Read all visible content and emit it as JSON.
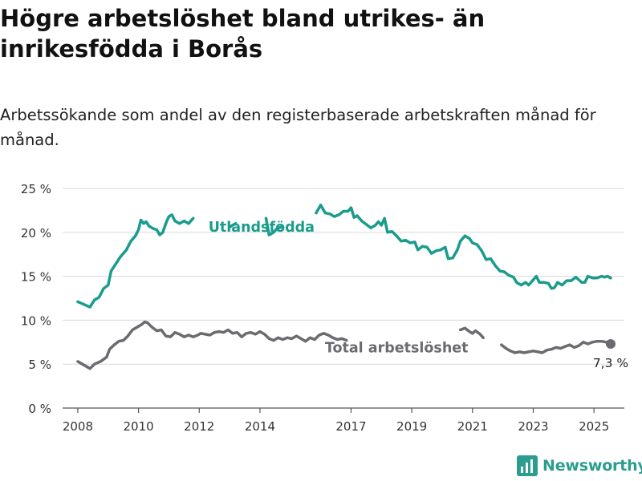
{
  "header": {
    "title": "Högre arbetslöshet bland utrikes- än inrikesfödda i Borås",
    "subtitle": "Arbetssökande som andel av den registerbaserade arbetskraften månad för månad."
  },
  "brand": {
    "name": "Newsworthy",
    "icon": "newsworthy-logo-icon",
    "color": "#2a9d8f"
  },
  "chart_data": {
    "type": "line",
    "ylim": [
      0,
      25
    ],
    "xlim": [
      2007.5,
      2026
    ],
    "yticks": [
      {
        "value": 0,
        "label": "0 %"
      },
      {
        "value": 5,
        "label": "5 %"
      },
      {
        "value": 10,
        "label": "10 %"
      },
      {
        "value": 15,
        "label": "15 %"
      },
      {
        "value": 20,
        "label": "20 %"
      },
      {
        "value": 25,
        "label": "25 %"
      }
    ],
    "xticks": [
      {
        "value": 2008,
        "label": "2008"
      },
      {
        "value": 2010,
        "label": "2010"
      },
      {
        "value": 2012,
        "label": "2012"
      },
      {
        "value": 2014,
        "label": "2014"
      },
      {
        "value": 2017,
        "label": "2017"
      },
      {
        "value": 2019,
        "label": "2019"
      },
      {
        "value": 2021,
        "label": "2021"
      },
      {
        "value": 2023,
        "label": "2023"
      },
      {
        "value": 2025,
        "label": "2025"
      }
    ],
    "grid": true,
    "series": [
      {
        "name": "Utlandsfödda",
        "color": "#1a9c8c",
        "label": "Utlandsfödda",
        "points": [
          [
            2008.0,
            12.1
          ],
          [
            2008.2,
            11.8
          ],
          [
            2008.4,
            11.5
          ],
          [
            2008.55,
            12.3
          ],
          [
            2008.7,
            12.6
          ],
          [
            2008.85,
            13.6
          ],
          [
            2009.0,
            14.0
          ],
          [
            2009.1,
            15.6
          ],
          [
            2009.25,
            16.4
          ],
          [
            2009.4,
            17.2
          ],
          [
            2009.6,
            18.0
          ],
          [
            2009.75,
            19.0
          ],
          [
            2009.9,
            19.6
          ],
          [
            2010.0,
            20.3
          ],
          [
            2010.08,
            21.4
          ],
          [
            2010.17,
            21.0
          ],
          [
            2010.25,
            21.2
          ],
          [
            2010.35,
            20.7
          ],
          [
            2010.5,
            20.4
          ],
          [
            2010.6,
            20.3
          ],
          [
            2010.7,
            19.7
          ],
          [
            2010.8,
            20.0
          ],
          [
            2010.9,
            21.0
          ],
          [
            2011.0,
            21.8
          ],
          [
            2011.1,
            22.0
          ],
          [
            2011.2,
            21.3
          ],
          [
            2011.35,
            21.0
          ],
          [
            2011.5,
            21.3
          ],
          [
            2011.65,
            21.0
          ],
          [
            2011.8,
            21.6
          ]
        ],
        "points_2": [
          [
            2013.0,
            20.6
          ],
          [
            2013.2,
            21.0
          ]
        ],
        "points_3": [
          [
            2014.2,
            21.6
          ],
          [
            2014.3,
            19.7
          ],
          [
            2014.45,
            20.0
          ],
          [
            2014.55,
            20.4
          ],
          [
            2014.7,
            20.6
          ]
        ],
        "points_4": [
          [
            2015.85,
            22.2
          ],
          [
            2016.0,
            23.1
          ],
          [
            2016.15,
            22.2
          ],
          [
            2016.3,
            22.1
          ],
          [
            2016.45,
            21.8
          ],
          [
            2016.6,
            22.0
          ],
          [
            2016.75,
            22.4
          ],
          [
            2016.9,
            22.4
          ],
          [
            2017.0,
            22.8
          ],
          [
            2017.1,
            21.7
          ],
          [
            2017.2,
            21.9
          ],
          [
            2017.35,
            21.3
          ],
          [
            2017.5,
            20.9
          ],
          [
            2017.65,
            20.5
          ],
          [
            2017.8,
            20.8
          ],
          [
            2017.9,
            21.2
          ],
          [
            2018.0,
            20.8
          ],
          [
            2018.1,
            21.6
          ],
          [
            2018.2,
            20.0
          ],
          [
            2018.35,
            20.1
          ],
          [
            2018.5,
            19.6
          ],
          [
            2018.65,
            19.0
          ],
          [
            2018.8,
            19.1
          ],
          [
            2018.95,
            18.8
          ],
          [
            2019.1,
            18.9
          ],
          [
            2019.2,
            18.0
          ],
          [
            2019.35,
            18.4
          ],
          [
            2019.5,
            18.3
          ],
          [
            2019.65,
            17.6
          ],
          [
            2019.8,
            17.9
          ],
          [
            2019.95,
            18.0
          ],
          [
            2020.1,
            18.3
          ],
          [
            2020.2,
            17.0
          ],
          [
            2020.35,
            17.1
          ],
          [
            2020.5,
            18.0
          ],
          [
            2020.6,
            19.0
          ],
          [
            2020.75,
            19.6
          ],
          [
            2020.9,
            19.3
          ],
          [
            2021.0,
            18.8
          ],
          [
            2021.15,
            18.6
          ],
          [
            2021.3,
            17.9
          ],
          [
            2021.45,
            16.9
          ],
          [
            2021.6,
            17.0
          ],
          [
            2021.75,
            16.2
          ],
          [
            2021.9,
            15.6
          ],
          [
            2022.05,
            15.5
          ],
          [
            2022.2,
            15.1
          ],
          [
            2022.35,
            14.9
          ],
          [
            2022.45,
            14.3
          ],
          [
            2022.6,
            14.0
          ],
          [
            2022.75,
            14.3
          ],
          [
            2022.85,
            14.0
          ],
          [
            2023.0,
            14.6
          ],
          [
            2023.1,
            15.0
          ],
          [
            2023.2,
            14.3
          ],
          [
            2023.35,
            14.3
          ],
          [
            2023.5,
            14.2
          ],
          [
            2023.6,
            13.6
          ],
          [
            2023.7,
            13.7
          ],
          [
            2023.8,
            14.3
          ],
          [
            2023.95,
            14.0
          ],
          [
            2024.1,
            14.5
          ],
          [
            2024.25,
            14.5
          ],
          [
            2024.4,
            14.9
          ],
          [
            2024.5,
            14.6
          ],
          [
            2024.6,
            14.3
          ],
          [
            2024.7,
            14.3
          ],
          [
            2024.8,
            15.0
          ],
          [
            2024.95,
            14.8
          ],
          [
            2025.1,
            14.8
          ],
          [
            2025.25,
            15.0
          ],
          [
            2025.35,
            14.9
          ],
          [
            2025.45,
            15.0
          ],
          [
            2025.55,
            14.8
          ]
        ]
      },
      {
        "name": "Total arbetslöshet",
        "color": "#6b6b70",
        "label": "Total arbetslöshet",
        "last_value_label": "7,3 %",
        "points": [
          [
            2008.0,
            5.3
          ],
          [
            2008.2,
            4.9
          ],
          [
            2008.4,
            4.5
          ],
          [
            2008.55,
            5.0
          ],
          [
            2008.75,
            5.3
          ],
          [
            2008.95,
            5.8
          ],
          [
            2009.05,
            6.7
          ],
          [
            2009.2,
            7.2
          ],
          [
            2009.35,
            7.6
          ],
          [
            2009.5,
            7.7
          ],
          [
            2009.65,
            8.2
          ],
          [
            2009.8,
            8.9
          ],
          [
            2009.95,
            9.2
          ],
          [
            2010.1,
            9.5
          ],
          [
            2010.2,
            9.8
          ],
          [
            2010.3,
            9.7
          ],
          [
            2010.45,
            9.2
          ],
          [
            2010.6,
            8.8
          ],
          [
            2010.75,
            8.9
          ],
          [
            2010.9,
            8.2
          ],
          [
            2011.05,
            8.1
          ],
          [
            2011.2,
            8.6
          ],
          [
            2011.35,
            8.4
          ],
          [
            2011.5,
            8.1
          ],
          [
            2011.65,
            8.3
          ],
          [
            2011.8,
            8.1
          ],
          [
            2011.95,
            8.3
          ],
          [
            2012.05,
            8.5
          ],
          [
            2012.2,
            8.4
          ],
          [
            2012.35,
            8.3
          ],
          [
            2012.5,
            8.6
          ],
          [
            2012.65,
            8.7
          ],
          [
            2012.8,
            8.6
          ],
          [
            2012.95,
            8.9
          ],
          [
            2013.1,
            8.5
          ],
          [
            2013.25,
            8.6
          ],
          [
            2013.4,
            8.1
          ],
          [
            2013.55,
            8.5
          ],
          [
            2013.7,
            8.6
          ],
          [
            2013.85,
            8.4
          ],
          [
            2014.0,
            8.7
          ],
          [
            2014.15,
            8.4
          ],
          [
            2014.3,
            7.9
          ],
          [
            2014.45,
            7.7
          ],
          [
            2014.6,
            8.0
          ],
          [
            2014.75,
            7.8
          ],
          [
            2014.9,
            8.0
          ],
          [
            2015.05,
            7.9
          ],
          [
            2015.2,
            8.2
          ],
          [
            2015.35,
            7.9
          ],
          [
            2015.5,
            7.6
          ],
          [
            2015.65,
            8.0
          ],
          [
            2015.8,
            7.8
          ],
          [
            2015.95,
            8.3
          ],
          [
            2016.1,
            8.5
          ],
          [
            2016.25,
            8.3
          ],
          [
            2016.4,
            8.0
          ],
          [
            2016.55,
            7.8
          ],
          [
            2016.7,
            7.9
          ],
          [
            2016.85,
            7.7
          ]
        ],
        "points_2": [
          [
            2020.6,
            8.9
          ],
          [
            2020.75,
            9.1
          ],
          [
            2020.9,
            8.7
          ],
          [
            2021.0,
            8.5
          ],
          [
            2021.1,
            8.8
          ],
          [
            2021.25,
            8.4
          ],
          [
            2021.35,
            8.0
          ]
        ],
        "points_3": [
          [
            2021.95,
            7.2
          ],
          [
            2022.1,
            6.8
          ],
          [
            2022.25,
            6.5
          ],
          [
            2022.4,
            6.3
          ],
          [
            2022.55,
            6.4
          ],
          [
            2022.7,
            6.3
          ],
          [
            2022.85,
            6.4
          ],
          [
            2023.0,
            6.5
          ],
          [
            2023.15,
            6.4
          ],
          [
            2023.3,
            6.3
          ],
          [
            2023.45,
            6.6
          ],
          [
            2023.6,
            6.7
          ],
          [
            2023.75,
            6.9
          ],
          [
            2023.9,
            6.8
          ],
          [
            2024.05,
            7.0
          ],
          [
            2024.2,
            7.2
          ],
          [
            2024.35,
            6.9
          ],
          [
            2024.5,
            7.1
          ],
          [
            2024.65,
            7.5
          ],
          [
            2024.8,
            7.3
          ],
          [
            2024.95,
            7.5
          ],
          [
            2025.1,
            7.6
          ],
          [
            2025.25,
            7.6
          ],
          [
            2025.4,
            7.5
          ],
          [
            2025.55,
            7.3
          ]
        ]
      }
    ]
  }
}
